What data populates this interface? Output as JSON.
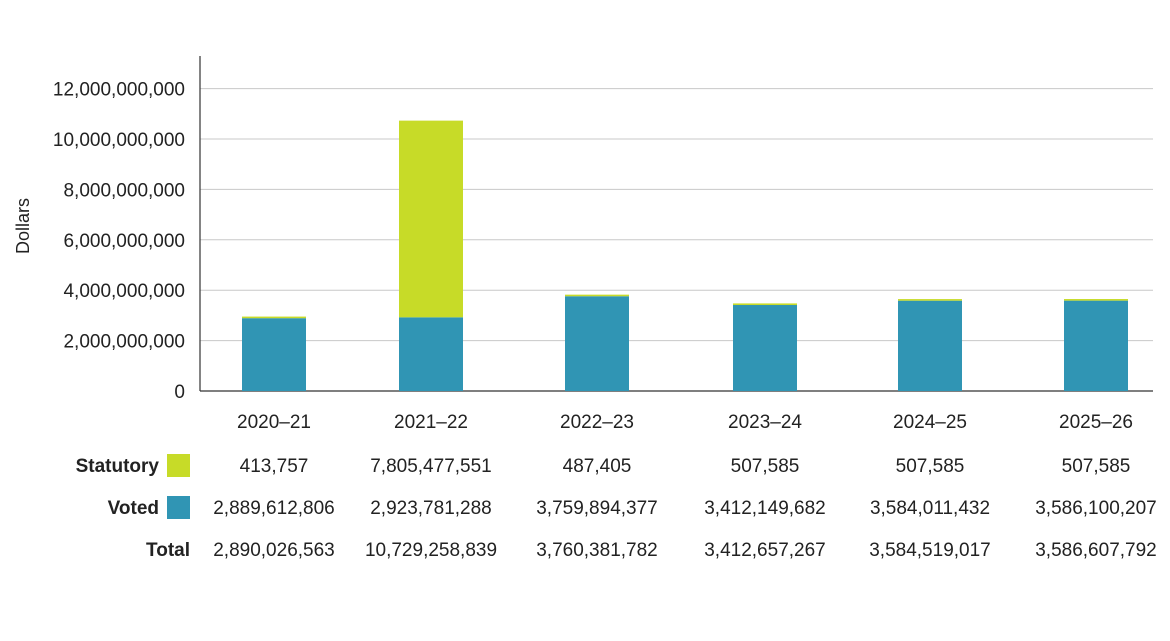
{
  "chart_data": {
    "type": "bar",
    "stacked": true,
    "title": "",
    "xlabel": "",
    "ylabel": "Dollars",
    "ylim": [
      0,
      13000000000
    ],
    "yticks": [
      0,
      2000000000,
      4000000000,
      6000000000,
      8000000000,
      10000000000,
      12000000000
    ],
    "ytick_labels": [
      "0",
      "2,000,000,000",
      "4,000,000,000",
      "6,000,000,000",
      "8,000,000,000",
      "10,000,000,000",
      "12,000,000,000"
    ],
    "grid": true,
    "categories": [
      "2020–21",
      "2021–22",
      "2022–23",
      "2023–24",
      "2024–25",
      "2025–26"
    ],
    "series": [
      {
        "name": "Voted",
        "color": "#3095B4",
        "values": [
          2889612806,
          2923781288,
          3759894377,
          3412149682,
          3584011432,
          3586100207
        ]
      },
      {
        "name": "Statutory",
        "color": "#C7DB28",
        "values": [
          413757,
          7805477551,
          487405,
          507585,
          507585,
          507585
        ]
      }
    ],
    "table": {
      "rows": [
        {
          "label": "Statutory",
          "legend_color": "#C7DB28",
          "cells": [
            "413,757",
            "7,805,477,551",
            "487,405",
            "507,585",
            "507,585",
            "507,585"
          ]
        },
        {
          "label": "Voted",
          "legend_color": "#3095B4",
          "cells": [
            "2,889,612,806",
            "2,923,781,288",
            "3,759,894,377",
            "3,412,149,682",
            "3,584,011,432",
            "3,586,100,207"
          ]
        },
        {
          "label": "Total",
          "legend_color": "",
          "cells": [
            "2,890,026,563",
            "10,729,258,839",
            "3,760,381,782",
            "3,412,657,267",
            "3,584,519,017",
            "3,586,607,792"
          ]
        }
      ]
    }
  }
}
